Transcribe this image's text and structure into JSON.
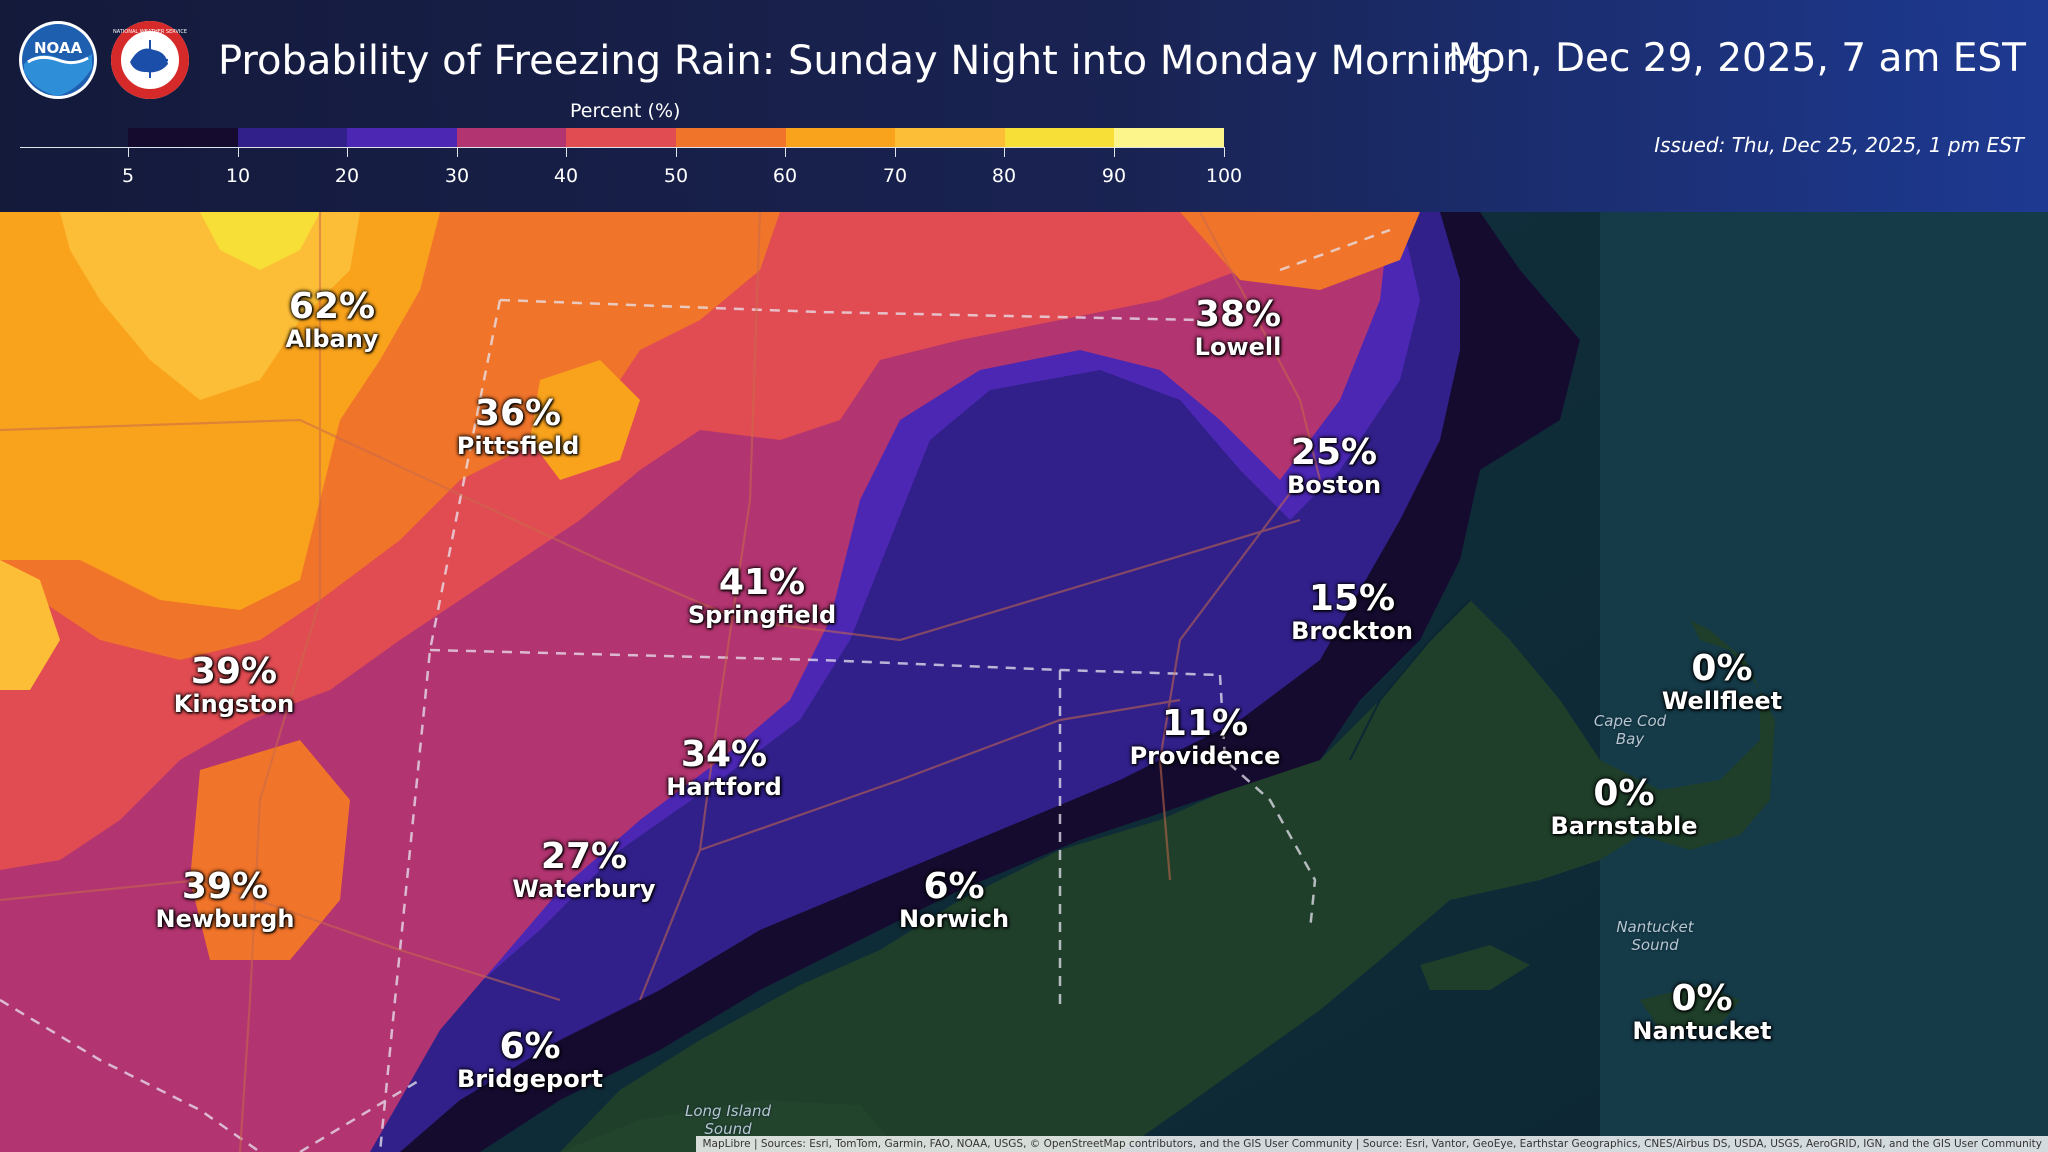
{
  "header": {
    "title": "Probability of Freezing Rain: Sunday Night into Monday Morning",
    "valid_time": "Mon, Dec 29, 2025, 7 am EST",
    "issued": "Issued: Thu, Dec 25, 2025, 1 pm EST",
    "logos": [
      {
        "icon": "noaa-logo-icon",
        "text": "NOAA"
      },
      {
        "icon": "nws-logo-icon",
        "text": "NATIONAL WEATHER SERVICE"
      }
    ]
  },
  "legend": {
    "title": "Percent (%)",
    "ticks": [
      "5",
      "10",
      "20",
      "30",
      "40",
      "50",
      "60",
      "70",
      "80",
      "90",
      "100"
    ],
    "colors": [
      "#150b2e",
      "#31208a",
      "#4b27b4",
      "#b23470",
      "#e14c52",
      "#f0742a",
      "#f9a31c",
      "#fcbe36",
      "#f7df38",
      "#fbf58c"
    ]
  },
  "cities": [
    {
      "pct": "62%",
      "name": "Albany"
    },
    {
      "pct": "36%",
      "name": "Pittsfield"
    },
    {
      "pct": "38%",
      "name": "Lowell"
    },
    {
      "pct": "25%",
      "name": "Boston"
    },
    {
      "pct": "41%",
      "name": "Springfield"
    },
    {
      "pct": "15%",
      "name": "Brockton"
    },
    {
      "pct": "39%",
      "name": "Kingston"
    },
    {
      "pct": "0%",
      "name": "Wellfleet"
    },
    {
      "pct": "34%",
      "name": "Hartford"
    },
    {
      "pct": "11%",
      "name": "Providence"
    },
    {
      "pct": "0%",
      "name": "Barnstable"
    },
    {
      "pct": "27%",
      "name": "Waterbury"
    },
    {
      "pct": "39%",
      "name": "Newburgh"
    },
    {
      "pct": "6%",
      "name": "Norwich"
    },
    {
      "pct": "0%",
      "name": "Nantucket"
    },
    {
      "pct": "6%",
      "name": "Bridgeport"
    }
  ],
  "water_labels": [
    "Cape Cod Bay",
    "Nantucket Sound",
    "Long Island Sound"
  ],
  "attribution": "MapLibre | Sources: Esri, TomTom, Garmin, FAO, NOAA, USGS, © OpenStreetMap contributors, and the GIS User Community | Source: Esri, Vantor, GeoEye, Earthstar Geographics, CNES/Airbus DS, USDA, USGS, AeroGRID, IGN, and the GIS User Community"
}
